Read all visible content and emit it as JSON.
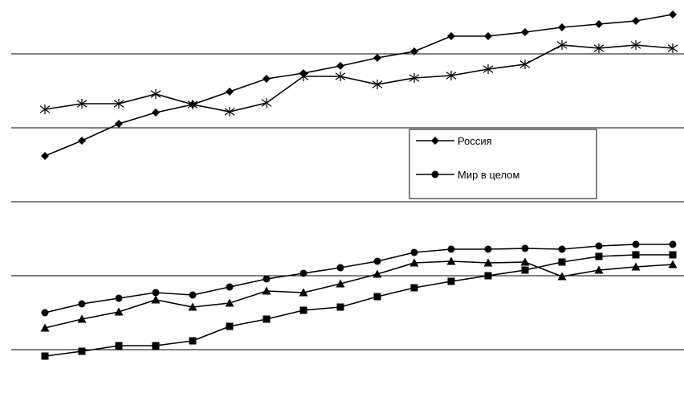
{
  "chart_data": {
    "type": "line",
    "x": [
      1,
      2,
      3,
      4,
      5,
      6,
      7,
      8,
      9,
      10,
      11,
      12,
      13,
      14,
      15,
      16,
      17,
      18
    ],
    "y_scale": "unlabeled",
    "grid": "horizontal",
    "legend": {
      "placement": "center-right",
      "entries": [
        "Россия",
        "Мир  в целом"
      ]
    },
    "series": [
      {
        "name": "Россия",
        "marker": "diamond",
        "values": [
          194,
          175,
          154,
          140,
          130,
          114,
          98,
          91,
          82,
          72,
          64,
          45,
          45,
          40,
          34,
          30,
          26,
          18
        ]
      },
      {
        "name": "",
        "marker": "asterisk",
        "values": [
          136,
          129,
          129,
          117,
          130,
          139,
          128,
          95,
          95,
          105,
          97,
          94,
          86,
          80,
          56,
          60,
          56,
          60
        ]
      },
      {
        "name": "Мир  в целом",
        "marker": "circle",
        "values": [
          389,
          378,
          371,
          364,
          367,
          357,
          347,
          340,
          333,
          325,
          314,
          310,
          310,
          309,
          310,
          306,
          304,
          304
        ]
      },
      {
        "name": "",
        "marker": "triangle",
        "values": [
          408,
          397,
          388,
          373,
          382,
          377,
          362,
          364,
          353,
          341,
          327,
          325,
          327,
          326,
          344,
          336,
          332,
          329
        ]
      },
      {
        "name": "",
        "marker": "square",
        "values": [
          443,
          437,
          430,
          430,
          424,
          406,
          397,
          386,
          382,
          369,
          358,
          350,
          343,
          336,
          326,
          319,
          317,
          317
        ]
      }
    ],
    "gridlines": [
      67,
      159,
      251,
      343,
      435
    ]
  }
}
